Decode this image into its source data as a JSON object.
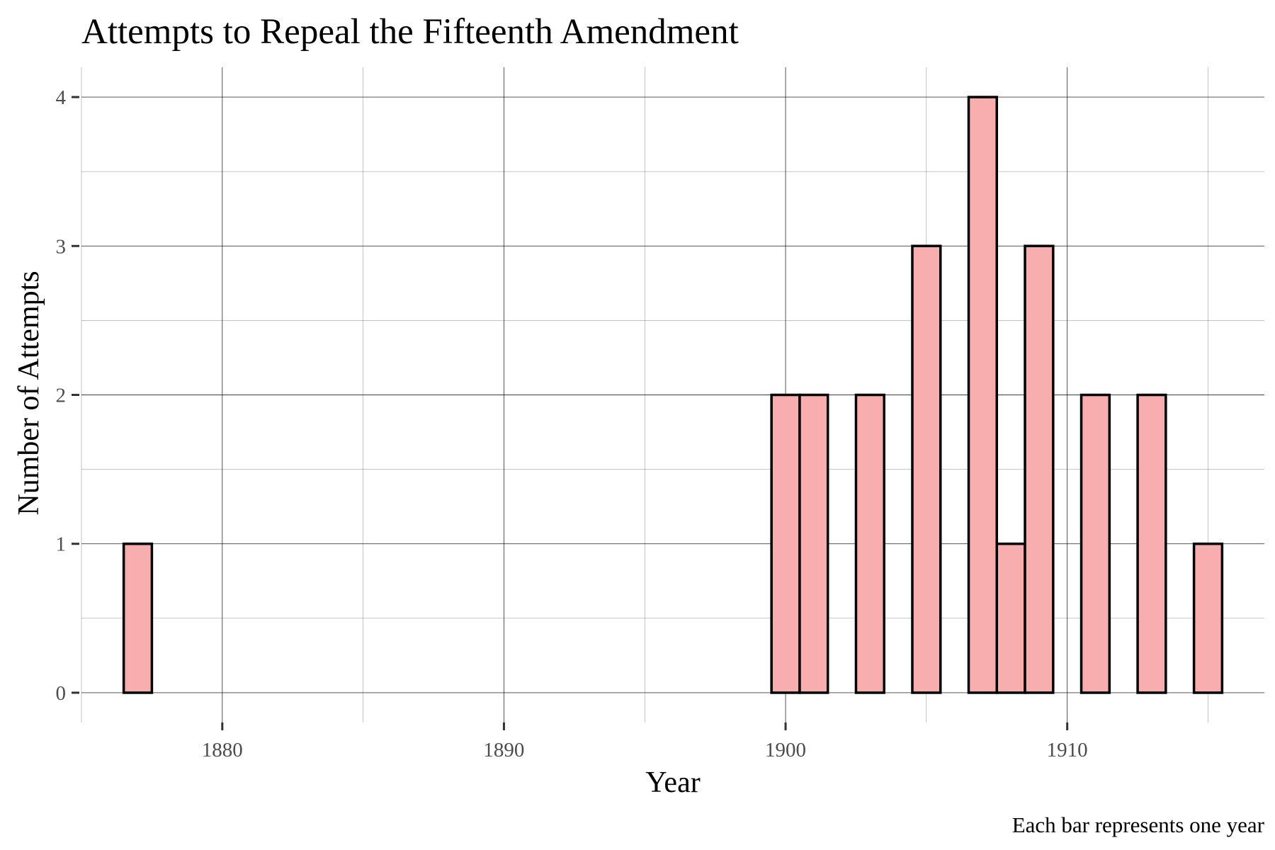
{
  "chart_data": {
    "type": "bar",
    "title": "Attempts to Repeal the Fifteenth Amendment",
    "xlabel": "Year",
    "ylabel": "Number of Attempts",
    "caption": "Each bar represents one year",
    "x": [
      1877,
      1878,
      1879,
      1880,
      1881,
      1882,
      1883,
      1884,
      1885,
      1886,
      1887,
      1888,
      1889,
      1890,
      1891,
      1892,
      1893,
      1894,
      1895,
      1896,
      1897,
      1898,
      1899,
      1900,
      1901,
      1902,
      1903,
      1904,
      1905,
      1906,
      1907,
      1908,
      1909,
      1910,
      1911,
      1912,
      1913,
      1914,
      1915
    ],
    "values": [
      1,
      0,
      0,
      0,
      0,
      0,
      0,
      0,
      0,
      0,
      0,
      0,
      0,
      0,
      0,
      0,
      0,
      0,
      0,
      0,
      0,
      0,
      0,
      2,
      2,
      0,
      2,
      0,
      3,
      0,
      4,
      1,
      3,
      0,
      2,
      0,
      2,
      0,
      1
    ],
    "xlim": [
      1875,
      1917
    ],
    "ylim": [
      -0.2,
      4.2
    ],
    "x_ticks": [
      1880,
      1890,
      1900,
      1910
    ],
    "x_tick_labels": [
      "1880",
      "1890",
      "1900",
      "1910"
    ],
    "y_ticks": [
      0,
      1,
      2,
      3,
      4
    ],
    "y_tick_labels": [
      "0",
      "1",
      "2",
      "3",
      "4"
    ],
    "bar_fill": "#f8aeae",
    "bar_outline": "#000000",
    "grid": true,
    "legend": "none"
  }
}
